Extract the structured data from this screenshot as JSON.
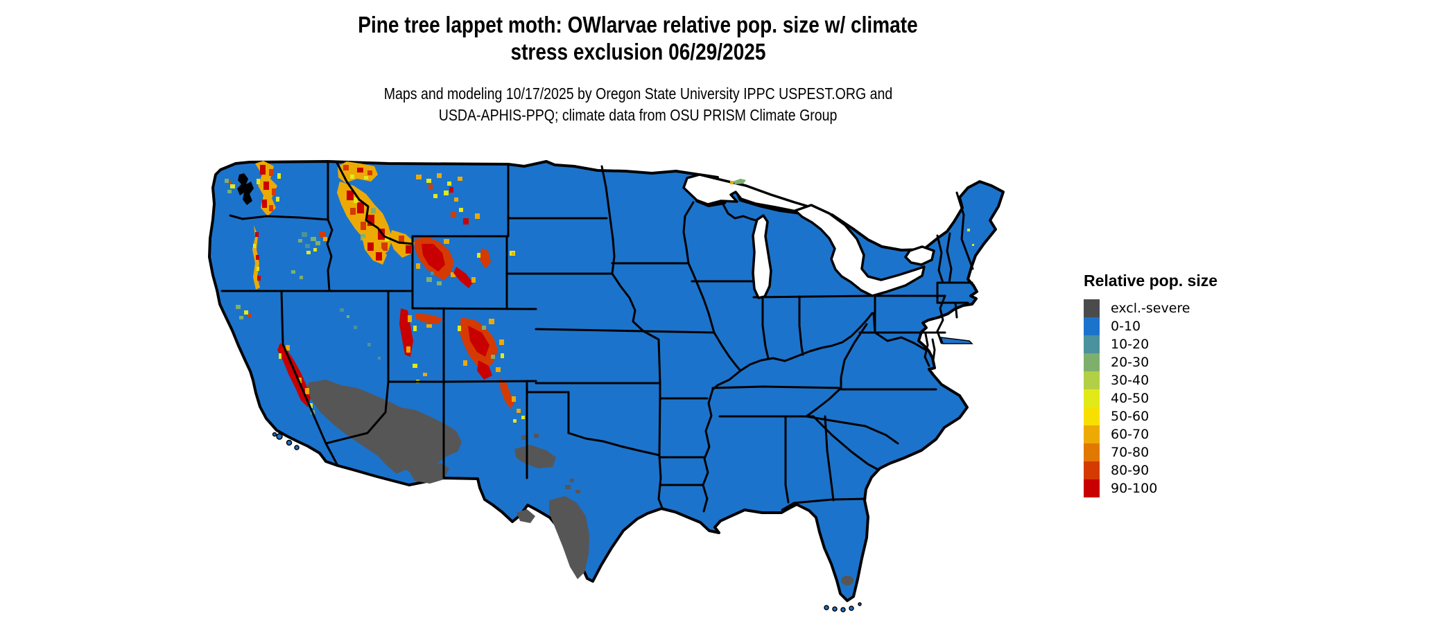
{
  "title": {
    "line1": "Pine tree lappet moth: OWlarvae relative pop. size w/ climate",
    "line2": "stress exclusion 06/29/2025"
  },
  "subtitle": {
    "line1": "Maps and modeling 10/17/2025 by Oregon State University IPPC USPEST.ORG and",
    "line2": "USDA-APHIS-PPQ; climate data from OSU PRISM Climate Group"
  },
  "legend": {
    "title": "Relative pop. size",
    "items": [
      {
        "label": "excl.-severe",
        "color": "#4b4b4d"
      },
      {
        "label": "0-10",
        "color": "#1c73cb"
      },
      {
        "label": "10-20",
        "color": "#4b929f"
      },
      {
        "label": "20-30",
        "color": "#7eb06d"
      },
      {
        "label": "30-40",
        "color": "#b2cf45"
      },
      {
        "label": "40-50",
        "color": "#e2e919"
      },
      {
        "label": "50-60",
        "color": "#f7df00"
      },
      {
        "label": "60-70",
        "color": "#edaa05"
      },
      {
        "label": "70-80",
        "color": "#e17800"
      },
      {
        "label": "80-90",
        "color": "#d53a02"
      },
      {
        "label": "90-100",
        "color": "#c90002"
      }
    ]
  },
  "map": {
    "type": "choropleth",
    "region": "Continental United States",
    "base_category": "0-10",
    "base_color": "#1c73cb",
    "excluded_color": "#565656",
    "water_color": "#ffffff",
    "state_border_color": "#000000",
    "high_population_areas": [
      "Cascade Range (WA/OR)",
      "Olympic Mountains (WA)",
      "Northern Rockies (ID/MT)",
      "Greater Yellowstone / NW Wyoming",
      "Bighorn and Wind River ranges (WY)",
      "Wasatch and Uinta ranges (UT)",
      "Colorado Rockies",
      "Sangre de Cristo (NM)",
      "Sierra Nevada (CA)",
      "Blue Mountains (OR)",
      "Isle Royale (MI)"
    ],
    "excluded_areas": [
      "Mojave Desert (SE California / S Nevada)",
      "Sonoran Desert (S Arizona)",
      "West Texas / Big Bend",
      "South Texas",
      "Lake Okeechobee area (FL)"
    ]
  }
}
